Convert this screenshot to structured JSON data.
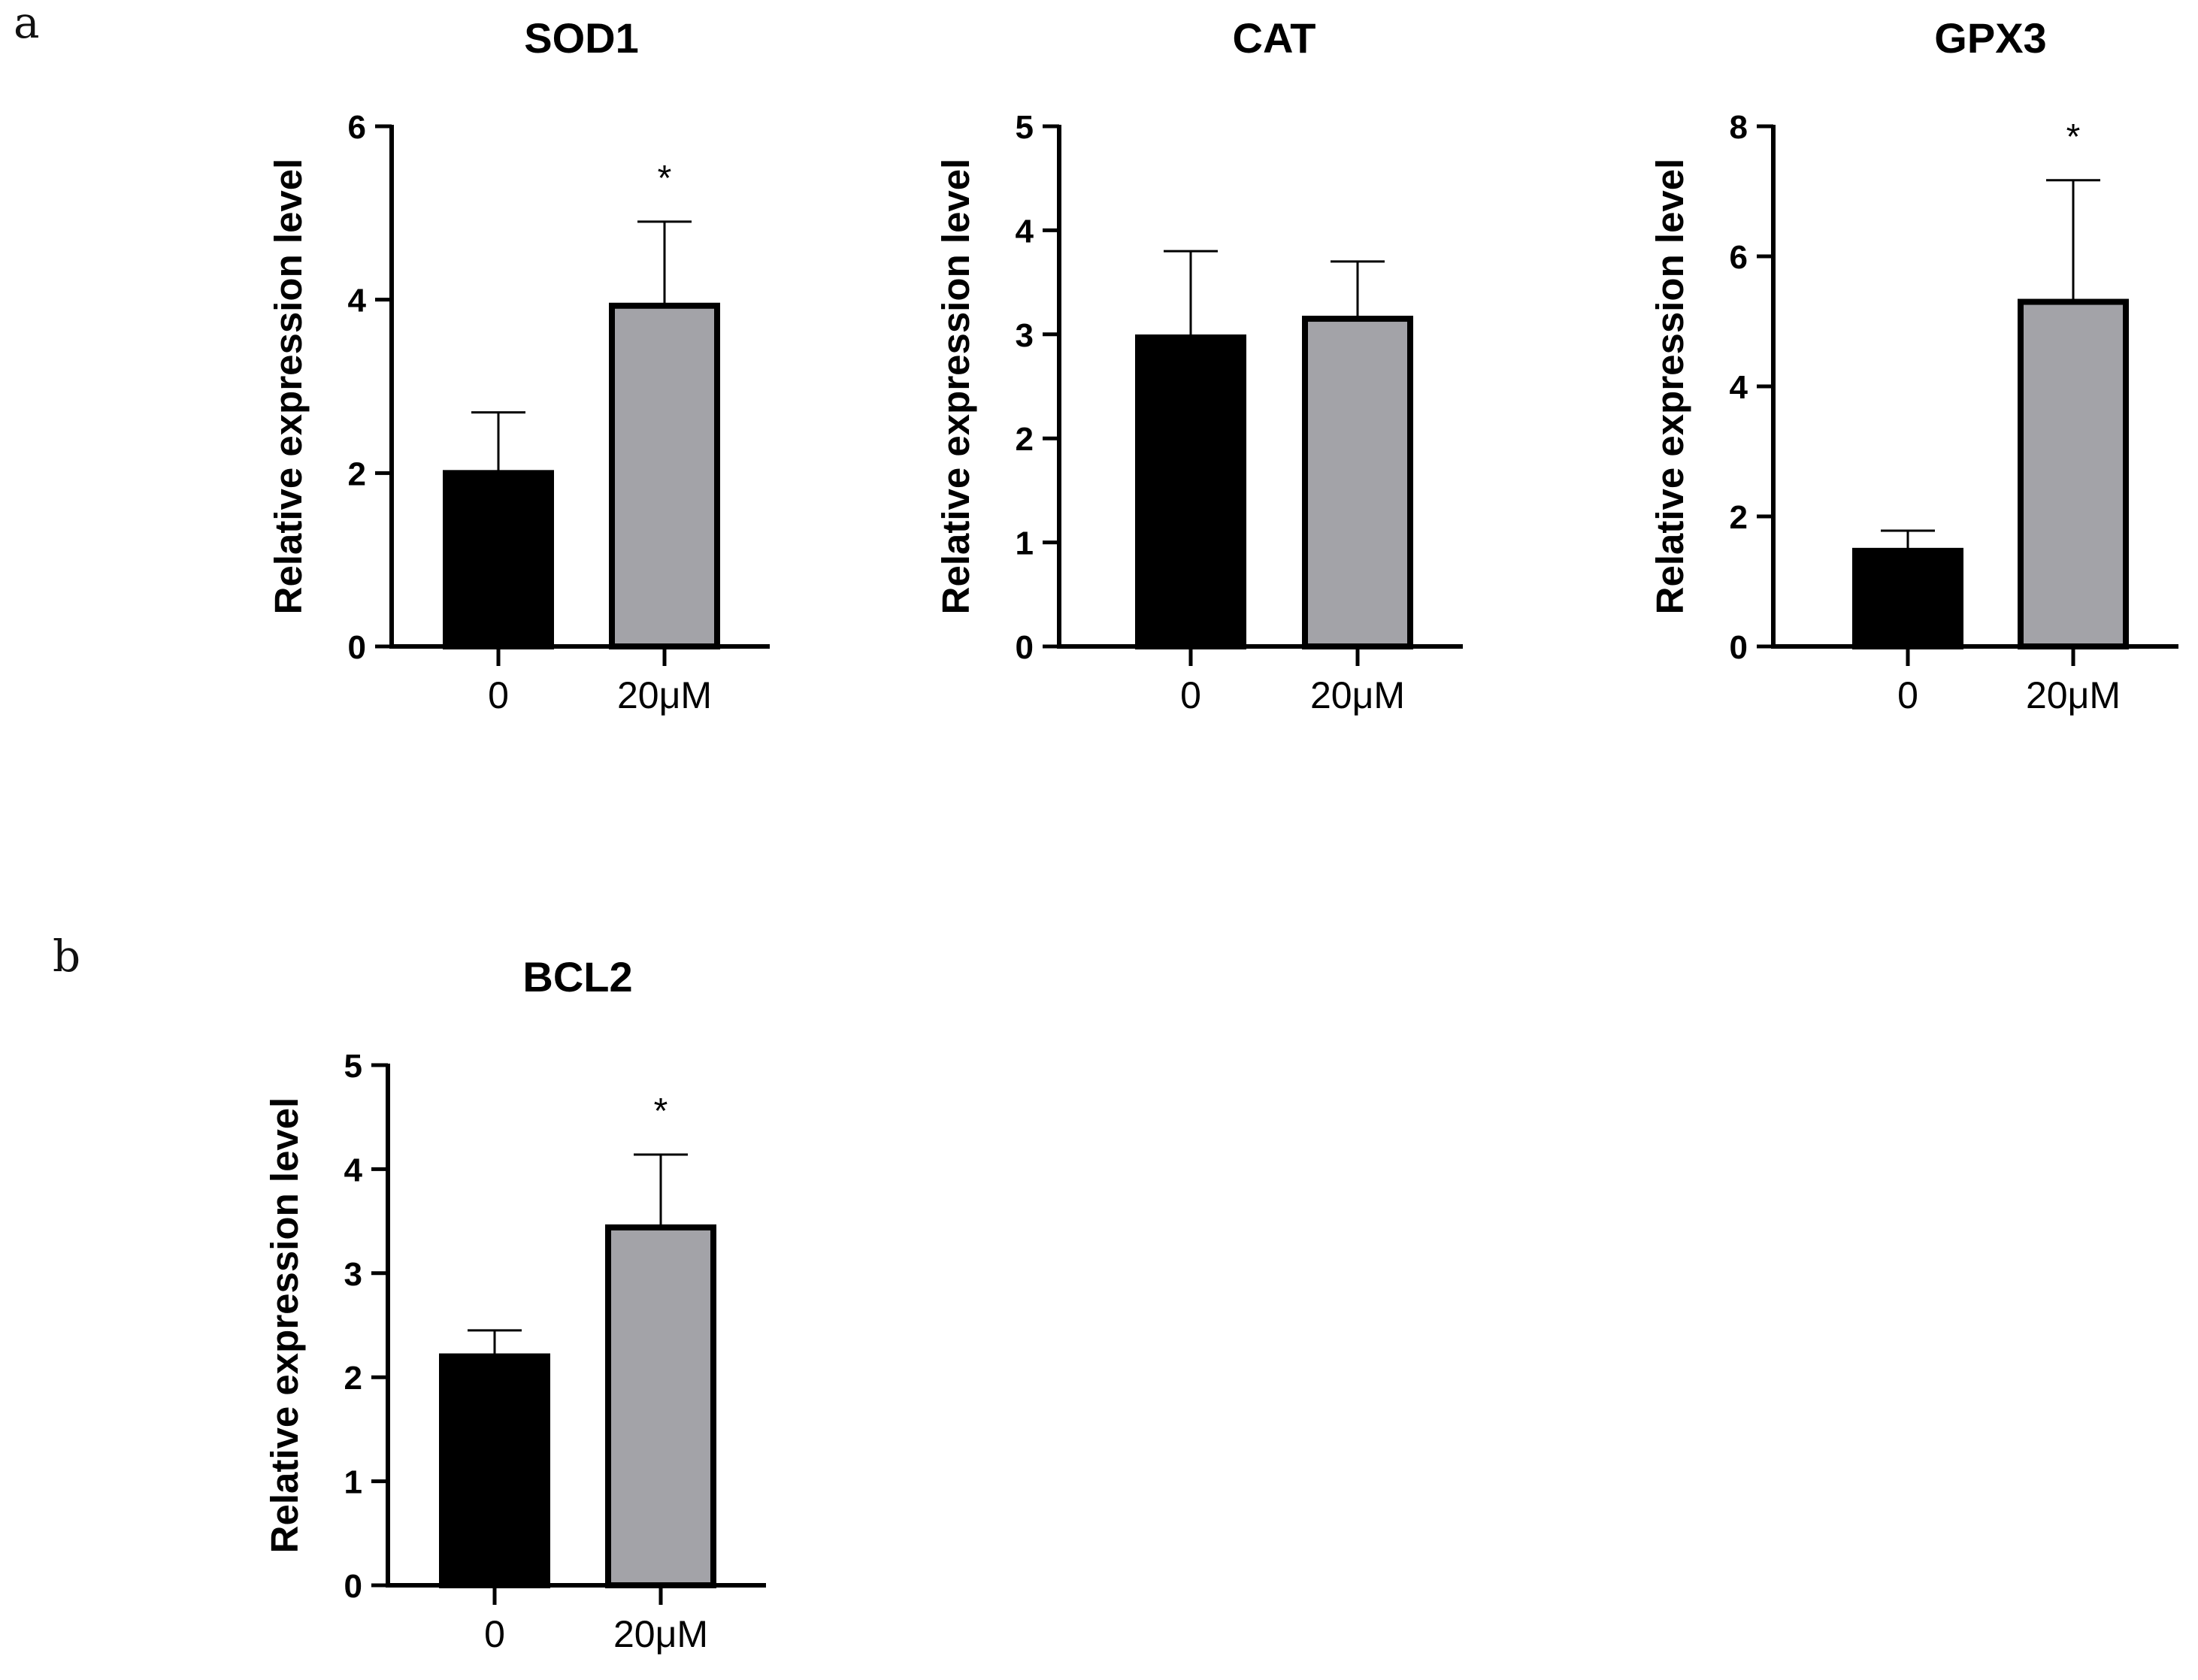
{
  "panel_labels": [
    "a",
    "b"
  ],
  "style": {
    "control_color": "#000000",
    "treated_color": "#a3a3a8",
    "axis_color": "#000000",
    "errorbar_color": "#000000"
  },
  "chart_data": [
    {
      "type": "bar",
      "panel": "a",
      "title": "SOD1",
      "categories": [
        "0",
        "20μM"
      ],
      "values": [
        2.0,
        3.93
      ],
      "errors": [
        0.7,
        0.97
      ],
      "significance": [
        "",
        "*"
      ],
      "xlabel": "",
      "ylabel": "Relative expression level",
      "ylim": [
        0,
        6
      ],
      "yticks": [
        0,
        2,
        4,
        6
      ],
      "ytick_labels": [
        "0",
        "2",
        "4",
        "6"
      ],
      "grid": false
    },
    {
      "type": "bar",
      "panel": "a",
      "title": "CAT",
      "categories": [
        "0",
        "20μM"
      ],
      "values": [
        2.97,
        3.15
      ],
      "errors": [
        0.83,
        0.55
      ],
      "significance": [
        "",
        ""
      ],
      "xlabel": "",
      "ylabel": "Relative expression level",
      "ylim": [
        0,
        5
      ],
      "yticks": [
        0,
        1,
        2,
        3,
        4,
        5
      ],
      "ytick_labels": [
        "0",
        "1",
        "2",
        "3",
        "4",
        "5"
      ],
      "grid": false
    },
    {
      "type": "bar",
      "panel": "a",
      "title": "GPX3",
      "categories": [
        "0",
        "20μM"
      ],
      "values": [
        1.47,
        5.3
      ],
      "errors": [
        0.31,
        1.87
      ],
      "significance": [
        "",
        "*"
      ],
      "xlabel": "",
      "ylabel": "Relative expression level",
      "ylim": [
        0,
        8
      ],
      "yticks": [
        0,
        2,
        4,
        6,
        8
      ],
      "ytick_labels": [
        "0",
        "2",
        "4",
        "6",
        "8"
      ],
      "grid": false
    },
    {
      "type": "bar",
      "panel": "b",
      "title": "BCL2",
      "categories": [
        "0",
        "20μM"
      ],
      "values": [
        2.2,
        3.44
      ],
      "errors": [
        0.25,
        0.7
      ],
      "significance": [
        "",
        "*"
      ],
      "xlabel": "",
      "ylabel": "Relative expression level",
      "ylim": [
        0,
        5
      ],
      "yticks": [
        0,
        1,
        2,
        3,
        4,
        5
      ],
      "ytick_labels": [
        "0",
        "1",
        "2",
        "3",
        "4",
        "5"
      ],
      "grid": false
    }
  ]
}
